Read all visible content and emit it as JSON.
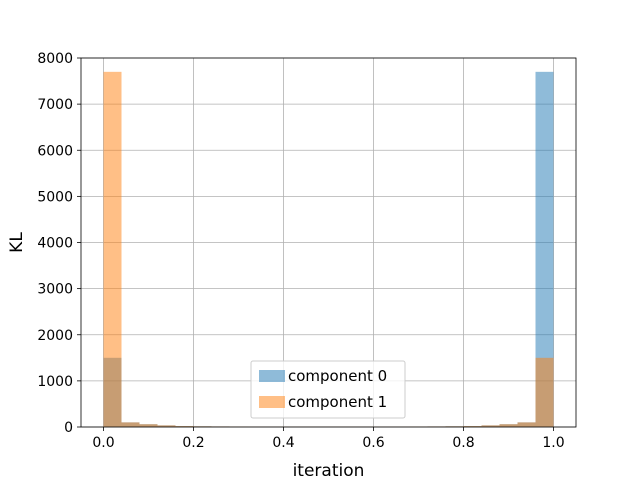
{
  "chart_data": {
    "type": "bar",
    "subtype": "histogram",
    "title": "",
    "xlabel": "iteration",
    "ylabel": "KL",
    "xlim": [
      -0.05,
      1.05
    ],
    "ylim": [
      0,
      8000
    ],
    "xticks": [
      0.0,
      0.2,
      0.4,
      0.6,
      0.8,
      1.0
    ],
    "xtick_labels": [
      "0.0",
      "0.2",
      "0.4",
      "0.6",
      "0.8",
      "1.0"
    ],
    "yticks": [
      0,
      1000,
      2000,
      3000,
      4000,
      5000,
      6000,
      7000,
      8000
    ],
    "ytick_labels": [
      "0",
      "1000",
      "2000",
      "3000",
      "4000",
      "5000",
      "6000",
      "7000",
      "8000"
    ],
    "grid": true,
    "legend_position": "lower-center",
    "bin_edges": [
      0.0,
      0.04,
      0.08,
      0.12,
      0.16,
      0.2,
      0.24,
      0.28,
      0.32,
      0.36,
      0.4,
      0.44,
      0.48,
      0.52,
      0.56,
      0.6,
      0.64,
      0.68,
      0.72,
      0.76,
      0.8,
      0.84,
      0.88,
      0.92,
      0.96,
      1.0
    ],
    "series": [
      {
        "name": "component 0",
        "color": "#1f77b4",
        "alpha": 0.5,
        "values": [
          1500,
          100,
          60,
          35,
          20,
          15,
          12,
          10,
          8,
          8,
          8,
          8,
          8,
          8,
          8,
          8,
          8,
          10,
          12,
          15,
          20,
          35,
          60,
          100,
          7700
        ]
      },
      {
        "name": "component 1",
        "color": "#ff7f0e",
        "alpha": 0.5,
        "values": [
          7700,
          100,
          60,
          35,
          20,
          15,
          12,
          10,
          8,
          8,
          8,
          8,
          8,
          8,
          8,
          8,
          8,
          10,
          12,
          15,
          20,
          35,
          60,
          100,
          1500
        ]
      }
    ]
  }
}
